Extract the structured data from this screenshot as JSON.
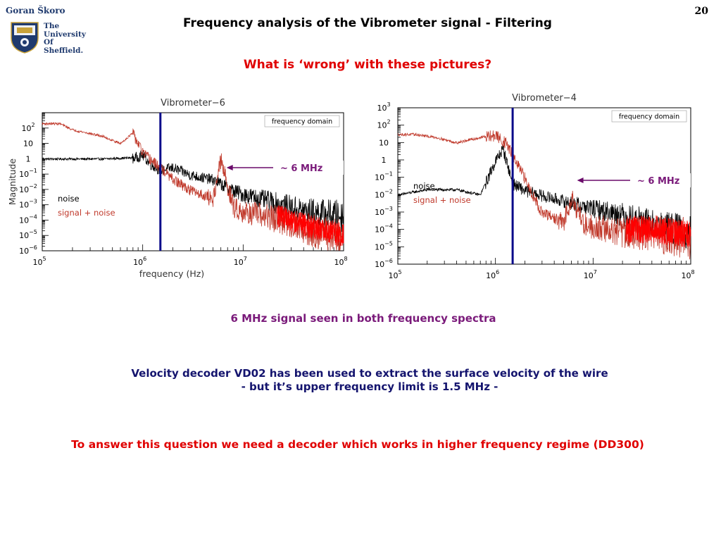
{
  "header": {
    "author": "Goran Škoro",
    "logo_lines": [
      "The",
      "University",
      "Of",
      "Sheffield."
    ],
    "page_number": "20",
    "title": "Frequency analysis of the Vibrometer signal - Filtering",
    "subtitle": "What is ‘wrong’ with these pictures?"
  },
  "colors": {
    "noise": "#000000",
    "signal_plus_noise": "#c0392b",
    "signal_plus_noise_dense": "#ff0000",
    "marker_line": "#0a0a8a",
    "arrow": "#6a0a6a"
  },
  "chart_data": [
    {
      "type": "line",
      "title": "Vibrometer−6",
      "xlabel": "frequency (Hz)",
      "ylabel": "Magnitude",
      "xscale": "log",
      "yscale": "log",
      "xlim": [
        100000,
        100000000
      ],
      "ylim": [
        1e-06,
        1000
      ],
      "xticks": [
        {
          "base": "10",
          "exp": "5"
        },
        {
          "base": "10",
          "exp": "6"
        },
        {
          "base": "10",
          "exp": "7"
        },
        {
          "base": "10",
          "exp": "8"
        }
      ],
      "yticks": [
        {
          "base": "10",
          "exp": "−6"
        },
        {
          "base": "10",
          "exp": "−5"
        },
        {
          "base": "10",
          "exp": "−4"
        },
        {
          "base": "10",
          "exp": "−3"
        },
        {
          "base": "10",
          "exp": "−2"
        },
        {
          "base": "10",
          "exp": "−1"
        },
        {
          "base": "1",
          "exp": ""
        },
        {
          "base": "10",
          "exp": ""
        },
        {
          "base": "10",
          "exp": "2"
        }
      ],
      "annotation_box": "frequency domain",
      "marker_frequency": 1500000,
      "arrow_label": "~ 6 MHz",
      "arrow_target_frequency": 6000000,
      "legend": [
        {
          "label": "noise"
        },
        {
          "label": "signal + noise"
        }
      ],
      "series": [
        {
          "name": "noise",
          "x": [
            100000,
            200000,
            400000,
            800000,
            1000000,
            1200000,
            1500000,
            2000000,
            3000000,
            5000000,
            8000000,
            10000000,
            20000000,
            40000000,
            100000000
          ],
          "y": [
            1,
            1,
            1,
            1.2,
            2,
            0.5,
            0.2,
            0.3,
            0.1,
            0.05,
            0.01,
            0.006,
            0.002,
            0.0006,
            0.0003
          ]
        },
        {
          "name": "signal + noise",
          "x": [
            100000,
            150000,
            200000,
            400000,
            600000,
            800000,
            1000000,
            1200000,
            1500000,
            2000000,
            3000000,
            5000000,
            6000000,
            8000000,
            10000000,
            20000000,
            40000000,
            100000000
          ],
          "y": [
            200,
            200,
            80,
            30,
            10,
            50,
            3,
            1,
            0.3,
            0.05,
            0.01,
            0.003,
            1,
            0.001,
            0.0005,
            0.0002,
            5e-05,
            1e-05
          ]
        }
      ]
    },
    {
      "type": "line",
      "title": "Vibrometer−4",
      "xlabel": "frequency (Hz)",
      "ylabel": "",
      "xscale": "log",
      "yscale": "log",
      "xlim": [
        100000,
        100000000
      ],
      "ylim": [
        1e-06,
        1000
      ],
      "xticks": [
        {
          "base": "10",
          "exp": "5"
        },
        {
          "base": "10",
          "exp": "6"
        },
        {
          "base": "10",
          "exp": "7"
        },
        {
          "base": "10",
          "exp": "8"
        }
      ],
      "yticks": [
        {
          "base": "10",
          "exp": "−6"
        },
        {
          "base": "10",
          "exp": "−5"
        },
        {
          "base": "10",
          "exp": "−4"
        },
        {
          "base": "10",
          "exp": "−3"
        },
        {
          "base": "10",
          "exp": "−2"
        },
        {
          "base": "10",
          "exp": "−1"
        },
        {
          "base": "1",
          "exp": ""
        },
        {
          "base": "10",
          "exp": ""
        },
        {
          "base": "10",
          "exp": "2"
        },
        {
          "base": "10",
          "exp": "3"
        }
      ],
      "annotation_box": "frequency domain",
      "marker_frequency": 1500000,
      "arrow_label": "~ 6 MHz",
      "arrow_target_frequency": 6000000,
      "legend": [
        {
          "label": "noise"
        },
        {
          "label": "signal + noise"
        }
      ],
      "series": [
        {
          "name": "noise",
          "x": [
            100000,
            200000,
            400000,
            700000,
            1000000,
            1200000,
            1500000,
            2000000,
            3000000,
            5000000,
            10000000,
            20000000,
            40000000,
            100000000
          ],
          "y": [
            0.01,
            0.02,
            0.02,
            0.01,
            1,
            5,
            0.05,
            0.02,
            0.01,
            0.005,
            0.002,
            0.001,
            0.0003,
            0.0001
          ]
        },
        {
          "name": "signal + noise",
          "x": [
            100000,
            150000,
            250000,
            400000,
            700000,
            1000000,
            1300000,
            1600000,
            2000000,
            3000000,
            5000000,
            6000000,
            8000000,
            10000000,
            20000000,
            40000000,
            100000000
          ],
          "y": [
            30,
            30,
            20,
            10,
            20,
            30,
            10,
            1,
            0.1,
            0.001,
            0.0003,
            0.01,
            0.0003,
            0.0002,
            0.0001,
            0.0001,
            5e-05
          ]
        }
      ]
    }
  ],
  "body": {
    "line1": "6 MHz signal seen in both frequency spectra",
    "line2": "Velocity decoder VD02 has been used to extract the surface velocity of the wire",
    "line3": "- but it’s upper frequency limit is 1.5 MHz -",
    "line4": "To answer this question we need a decoder which works in higher frequency regime (DD300)"
  }
}
